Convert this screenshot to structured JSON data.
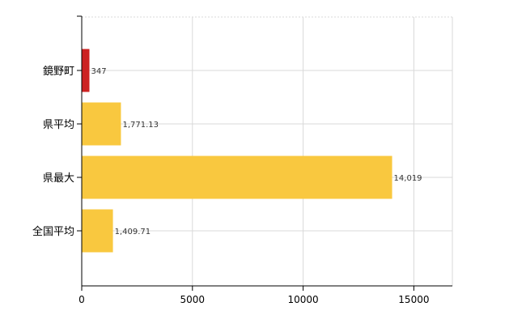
{
  "chart_data": {
    "type": "bar",
    "orientation": "horizontal",
    "categories": [
      "鏡野町",
      "県平均",
      "県最大",
      "全国平均"
    ],
    "values": [
      347,
      1771.13,
      14019,
      1409.71
    ],
    "value_labels": [
      "347",
      "1,771.13",
      "14,019",
      "1,409.71"
    ],
    "bar_colors": [
      "#cc2222",
      "#f9c83f",
      "#f9c83f",
      "#f9c83f"
    ],
    "x_ticks": [
      0,
      5000,
      10000,
      15000
    ],
    "x_tick_labels": [
      "0",
      "5000",
      "10000",
      "15000"
    ],
    "xlim": [
      0,
      16800
    ],
    "grid": true,
    "legend": "none"
  }
}
